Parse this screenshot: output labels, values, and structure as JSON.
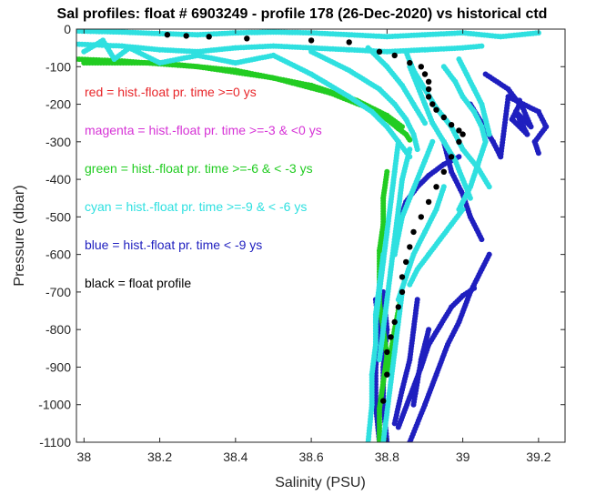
{
  "chart_data": {
    "type": "scatter",
    "title": "Sal profiles: float # 6903249 - profile 178 (26-Dec-2020) vs historical ctd",
    "xlabel": "Salinity (PSU)",
    "ylabel": "Pressure (dbar)",
    "xlim": [
      37.98,
      39.27
    ],
    "ylim": [
      -1100,
      0
    ],
    "xticks": [
      38,
      38.2,
      38.4,
      38.6,
      38.8,
      39,
      39.2
    ],
    "xtick_labels": [
      "38",
      "38.2",
      "38.4",
      "38.6",
      "38.8",
      "39",
      "39.2"
    ],
    "yticks": [
      0,
      -100,
      -200,
      -300,
      -400,
      -500,
      -600,
      -700,
      -800,
      -900,
      -1000,
      -1100
    ],
    "ytick_labels": [
      "0",
      "-100",
      "-200",
      "-300",
      "-400",
      "-500",
      "-600",
      "-700",
      "-800",
      "-900",
      "-1000",
      "-1100"
    ],
    "grid": false,
    "annotations": [
      {
        "text": "red = hist.-float pr. time >=0 ys",
        "color": "#e8262a"
      },
      {
        "text": "magenta = hist.-float pr. time >=-3 & <0 ys",
        "color": "#d633d6"
      },
      {
        "text": "green = hist.-float pr. time >=-6 & < -3 ys",
        "color": "#22cc22"
      },
      {
        "text": "cyan = hist.-float pr. time >=-9 & < -6 ys",
        "color": "#2fe0e0"
      },
      {
        "text": "blue = hist.-float pr. time < -9 ys",
        "color": "#1f1fbf"
      },
      {
        "text": "black = float profile",
        "color": "#000000"
      }
    ],
    "series": [
      {
        "color": "#1f1fbf",
        "lines": [
          {
            "x": [
              39.06,
              39.12,
              39.15,
              39.13,
              39.17,
              39.14,
              39.18,
              39.15
            ],
            "y": [
              -120,
              -160,
              -200,
              -240,
              -280,
              -220,
              -260,
              -190
            ]
          },
          {
            "x": [
              39.02,
              39.05,
              39.08,
              39.1,
              39.12,
              39.16,
              39.2,
              39.22,
              39.19,
              39.2
            ],
            "y": [
              -200,
              -250,
              -300,
              -340,
              -180,
              -200,
              -220,
              -260,
              -300,
              -330
            ]
          },
          {
            "x": [
              38.95,
              38.97,
              39.0,
              39.02,
              39.05
            ],
            "y": [
              -300,
              -380,
              -440,
              -500,
              -560
            ]
          },
          {
            "x": [
              38.86,
              38.9,
              38.93,
              38.96,
              38.99,
              39.02,
              39.05,
              39.07
            ],
            "y": [
              -1100,
              -1000,
              -920,
              -840,
              -780,
              -700,
              -640,
              -600
            ]
          },
          {
            "x": [
              38.83,
              38.86,
              38.89,
              38.91,
              38.94,
              38.97,
              39.0,
              39.03
            ],
            "y": [
              -1060,
              -980,
              -900,
              -840,
              -790,
              -740,
              -710,
              -690
            ]
          },
          {
            "x": [
              38.82,
              38.84,
              38.86,
              38.87,
              38.88
            ],
            "y": [
              -1050,
              -960,
              -880,
              -800,
              -720
            ]
          },
          {
            "x": [
              38.87,
              38.88,
              38.89,
              38.9,
              38.91
            ],
            "y": [
              -1000,
              -940,
              -880,
              -840,
              -800
            ]
          },
          {
            "x": [
              38.8,
              38.79,
              38.79,
              38.8,
              38.79
            ],
            "y": [
              -1100,
              -1000,
              -900,
              -800,
              -700
            ]
          },
          {
            "x": [
              38.78,
              38.77,
              38.77,
              38.78,
              38.77
            ],
            "y": [
              -1100,
              -1000,
              -900,
              -800,
              -720
            ]
          },
          {
            "x": [
              38.82,
              38.83,
              38.85,
              38.88,
              38.91,
              38.95,
              38.99
            ],
            "y": [
              -600,
              -520,
              -460,
              -420,
              -390,
              -360,
              -340
            ]
          }
        ]
      },
      {
        "color": "#22cc22",
        "lines": [
          {
            "x": [
              37.98,
              38.1,
              38.3,
              38.5,
              38.65,
              38.75,
              38.8,
              38.83,
              38.85,
              38.86
            ],
            "y": [
              -80,
              -85,
              -100,
              -130,
              -170,
              -210,
              -240,
              -265,
              -280,
              -295
            ]
          },
          {
            "x": [
              38.0,
              38.2,
              38.4,
              38.6,
              38.72,
              38.8,
              38.84
            ],
            "y": [
              -90,
              -90,
              -110,
              -150,
              -190,
              -230,
              -260
            ]
          },
          {
            "x": [
              38.8,
              38.79,
              38.79,
              38.78,
              38.78,
              38.78,
              38.79,
              38.8,
              38.79,
              38.78,
              38.78,
              38.78
            ],
            "y": [
              -380,
              -450,
              -520,
              -590,
              -660,
              -730,
              -800,
              -870,
              -940,
              -1010,
              -1070,
              -1100
            ]
          },
          {
            "x": [
              38.84,
              38.83,
              38.82,
              38.81,
              38.8
            ],
            "y": [
              -700,
              -750,
              -800,
              -860,
              -920
            ]
          }
        ]
      },
      {
        "color": "#2fe0e0",
        "lines": [
          {
            "x": [
              37.98,
              38.1,
              38.2,
              38.3,
              38.4,
              38.5,
              38.6,
              38.7,
              38.8,
              38.9,
              39.0,
              39.1,
              39.2
            ],
            "y": [
              -5,
              -8,
              -12,
              -15,
              -10,
              -8,
              -10,
              -15,
              -20,
              -15,
              -10,
              -20,
              -10
            ]
          },
          {
            "x": [
              37.98,
              38.1,
              38.2,
              38.3,
              38.4,
              38.5,
              38.6,
              38.7,
              38.8,
              38.9,
              39.0,
              39.05
            ],
            "y": [
              -40,
              -45,
              -55,
              -60,
              -50,
              -45,
              -50,
              -55,
              -60,
              -55,
              -50,
              -45
            ]
          },
          {
            "x": [
              38.0,
              38.05,
              38.08,
              38.12,
              38.2,
              38.3,
              38.4,
              38.5
            ],
            "y": [
              -60,
              -30,
              -80,
              -50,
              -90,
              -70,
              -90,
              -70
            ]
          },
          {
            "x": [
              38.5,
              38.6,
              38.7,
              38.76,
              38.8,
              38.83,
              38.86
            ],
            "y": [
              -70,
              -120,
              -180,
              -220,
              -260,
              -300,
              -340
            ]
          },
          {
            "x": [
              38.6,
              38.7,
              38.78,
              38.82,
              38.85,
              38.87,
              38.88
            ],
            "y": [
              -60,
              -110,
              -160,
              -200,
              -240,
              -280,
              -320
            ]
          },
          {
            "x": [
              38.75,
              38.8,
              38.84,
              38.87,
              38.9
            ],
            "y": [
              -50,
              -100,
              -150,
              -200,
              -250
            ]
          },
          {
            "x": [
              38.86,
              38.88,
              38.9,
              38.92,
              38.95,
              38.98,
              39.0,
              39.02
            ],
            "y": [
              -100,
              -150,
              -200,
              -250,
              -300,
              -350,
              -400,
              -450
            ]
          },
          {
            "x": [
              38.85,
              38.87,
              38.9,
              38.93,
              38.97,
              39.0,
              39.04,
              39.07
            ],
            "y": [
              -60,
              -110,
              -160,
              -210,
              -260,
              -320,
              -370,
              -420
            ]
          },
          {
            "x": [
              38.86,
              38.84,
              38.83,
              38.82,
              38.81,
              38.8,
              38.79,
              38.78
            ],
            "y": [
              -320,
              -400,
              -480,
              -560,
              -640,
              -720,
              -800,
              -880
            ]
          },
          {
            "x": [
              38.83,
              38.82,
              38.81,
              38.8,
              38.79,
              38.78,
              38.77
            ],
            "y": [
              -300,
              -380,
              -460,
              -540,
              -620,
              -700,
              -780
            ]
          },
          {
            "x": [
              38.79,
              38.78,
              38.77,
              38.77,
              38.76,
              38.76,
              38.75
            ],
            "y": [
              -600,
              -680,
              -760,
              -840,
              -920,
              -1000,
              -1100
            ]
          },
          {
            "x": [
              38.84,
              38.83,
              38.82,
              38.81,
              38.8,
              38.79
            ],
            "y": [
              -700,
              -780,
              -860,
              -940,
              -1020,
              -1100
            ]
          },
          {
            "x": [
              38.92,
              38.9,
              38.88,
              38.86,
              38.84,
              38.83,
              38.82
            ],
            "y": [
              -300,
              -350,
              -400,
              -450,
              -500,
              -550,
              -600
            ]
          },
          {
            "x": [
              38.95,
              38.93,
              38.9,
              38.87,
              38.85,
              38.83
            ],
            "y": [
              -420,
              -480,
              -540,
              -600,
              -660,
              -720
            ]
          },
          {
            "x": [
              39.0,
              38.97,
              38.94,
              38.91,
              38.88,
              38.86
            ],
            "y": [
              -480,
              -520,
              -560,
              -600,
              -640,
              -680
            ]
          },
          {
            "x": [
              38.99,
              39.01,
              39.03,
              39.05,
              39.06,
              39.07
            ],
            "y": [
              -80,
              -120,
              -160,
              -200,
              -240,
              -280
            ]
          },
          {
            "x": [
              38.95,
              38.98,
              39.0,
              39.03,
              39.05,
              39.06,
              39.04,
              39.02,
              38.99
            ],
            "y": [
              -100,
              -140,
              -180,
              -220,
              -260,
              -300,
              -360,
              -420,
              -480
            ]
          }
        ]
      },
      {
        "color": "#000000",
        "name": "float profile",
        "x": [
          38.22,
          38.27,
          38.33,
          38.43,
          38.6,
          38.7,
          38.78,
          38.82,
          38.86,
          38.89,
          38.9,
          38.91,
          38.91,
          38.91,
          38.92,
          38.93,
          38.95,
          38.97,
          38.99,
          39.0,
          38.99,
          38.97,
          38.95,
          38.93,
          38.91,
          38.89,
          38.87,
          38.86,
          38.85,
          38.84,
          38.84,
          38.83,
          38.82,
          38.81,
          38.8,
          38.8,
          38.79
        ],
        "y": [
          -15,
          -18,
          -20,
          -25,
          -30,
          -35,
          -60,
          -70,
          -90,
          -100,
          -120,
          -140,
          -160,
          -180,
          -200,
          -215,
          -235,
          -255,
          -270,
          -280,
          -300,
          -340,
          -380,
          -420,
          -460,
          -500,
          -540,
          -580,
          -620,
          -660,
          -700,
          -740,
          -780,
          -820,
          -860,
          -920,
          -990
        ]
      }
    ]
  }
}
